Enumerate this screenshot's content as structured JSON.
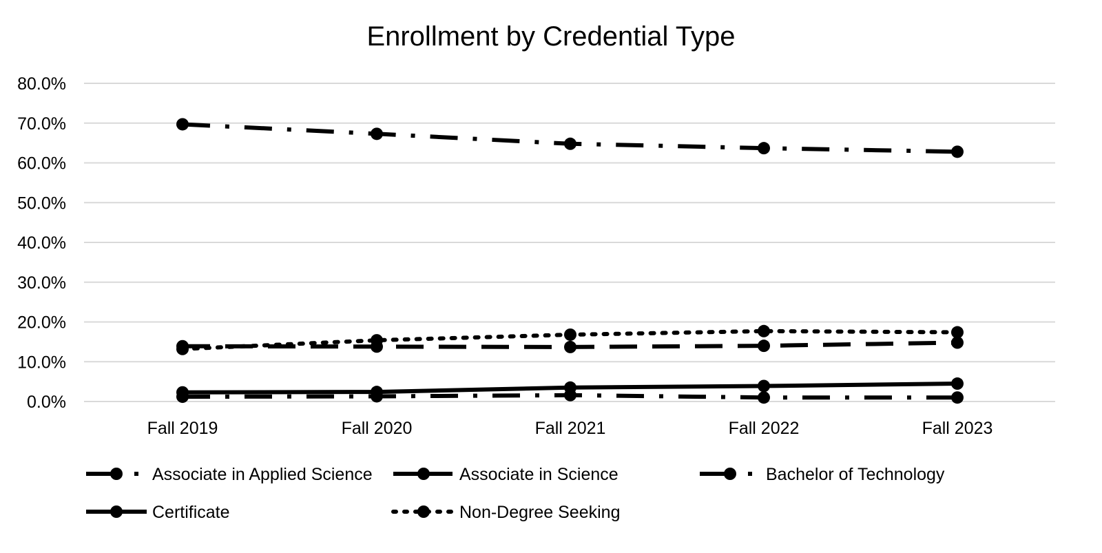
{
  "chart_data": {
    "type": "line",
    "title": "Enrollment by Credential Type",
    "xlabel": "",
    "ylabel": "",
    "categories": [
      "Fall 2019",
      "Fall 2020",
      "Fall 2021",
      "Fall 2022",
      "Fall 2023"
    ],
    "ylim": [
      0,
      80
    ],
    "yticks": [
      "0.0%",
      "10.0%",
      "20.0%",
      "30.0%",
      "40.0%",
      "50.0%",
      "60.0%",
      "70.0%",
      "80.0%"
    ],
    "grid": true,
    "legend_position": "bottom",
    "series": [
      {
        "name": "Associate in Applied Science",
        "values": [
          69.7,
          67.3,
          64.8,
          63.7,
          62.8
        ],
        "style": "dash-dot",
        "color": "#000000"
      },
      {
        "name": "Associate in Science",
        "values": [
          13.9,
          13.8,
          13.7,
          14.0,
          14.8
        ],
        "style": "long-dash",
        "color": "#000000"
      },
      {
        "name": "Bachelor of Technology",
        "values": [
          1.2,
          1.3,
          1.6,
          1.0,
          1.0
        ],
        "style": "long-dash-dot",
        "color": "#000000"
      },
      {
        "name": "Certificate",
        "values": [
          2.3,
          2.4,
          3.5,
          3.9,
          4.5
        ],
        "style": "solid",
        "color": "#000000"
      },
      {
        "name": "Non-Degree Seeking",
        "values": [
          13.2,
          15.4,
          16.8,
          17.7,
          17.4
        ],
        "style": "dotted",
        "color": "#000000"
      }
    ]
  }
}
